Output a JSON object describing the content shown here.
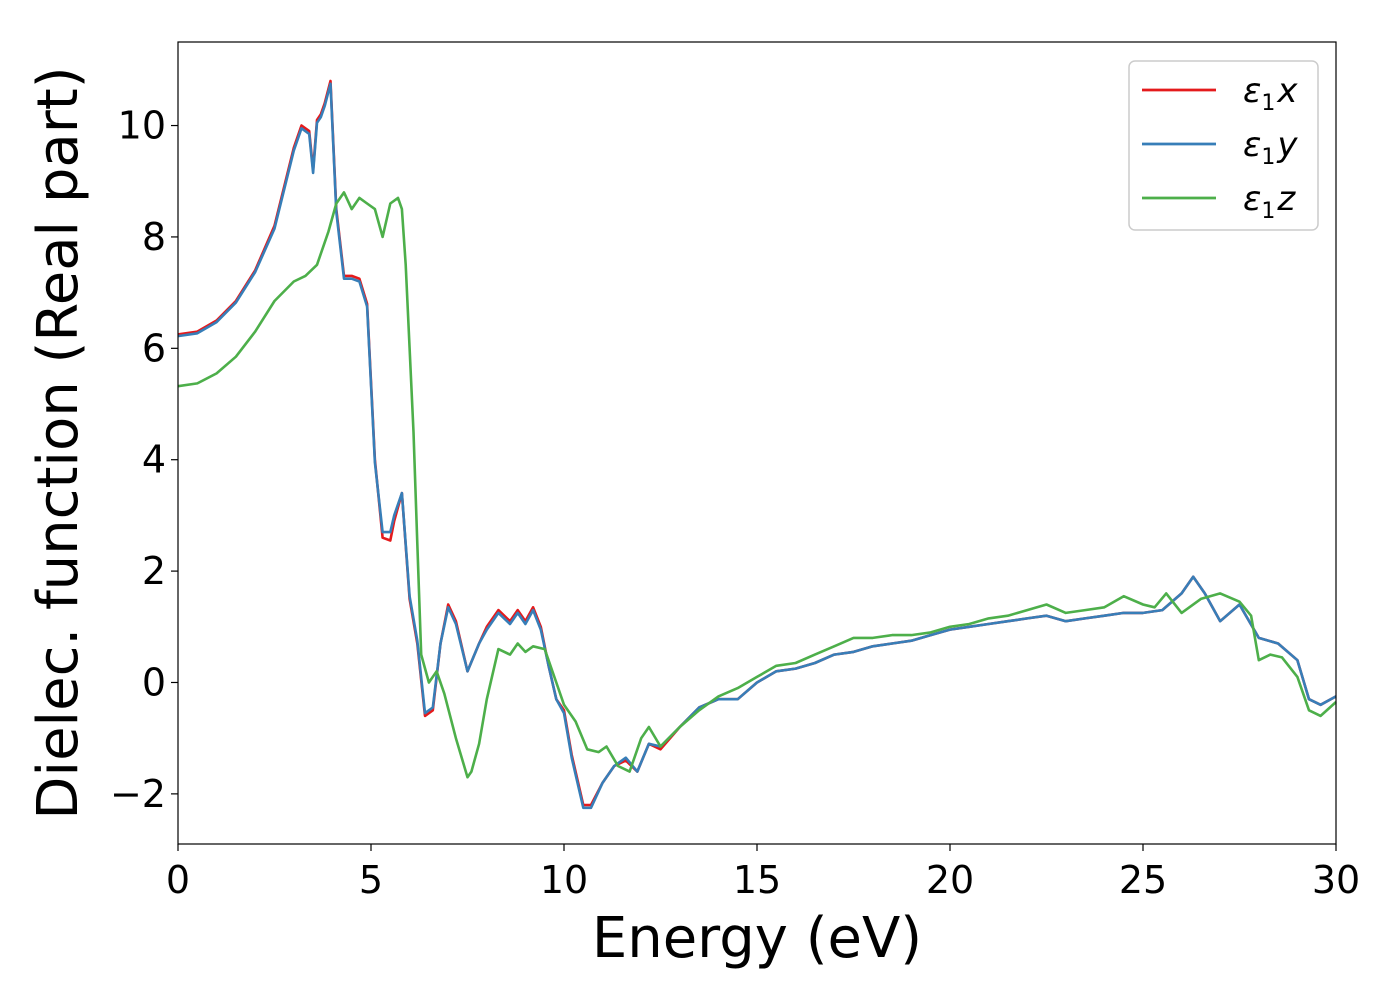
{
  "chart_data": {
    "type": "line",
    "xlabel": "Energy (eV)",
    "ylabel": "Dielec. function (Real part)",
    "xlim": [
      0,
      30
    ],
    "ylim": [
      -2.9,
      11.5
    ],
    "xticks": [
      0,
      5,
      10,
      15,
      20,
      25,
      30
    ],
    "yticks": [
      -2,
      0,
      2,
      4,
      6,
      8,
      10
    ],
    "xtick_labels": [
      "0",
      "5",
      "10",
      "15",
      "20",
      "25",
      "30"
    ],
    "ytick_labels": [
      "−2",
      "0",
      "2",
      "4",
      "6",
      "8",
      "10"
    ],
    "grid": false,
    "legend_position": "top-right",
    "series": [
      {
        "name": "ε1x",
        "symbol": "ε",
        "sub": "1",
        "var": "x",
        "color": "#e41a1c",
        "x": [
          0,
          0.5,
          1.0,
          1.5,
          2.0,
          2.5,
          3.0,
          3.2,
          3.4,
          3.5,
          3.6,
          3.7,
          3.8,
          3.95,
          4.1,
          4.3,
          4.5,
          4.7,
          4.9,
          5.1,
          5.3,
          5.5,
          5.6,
          5.8,
          6.0,
          6.2,
          6.4,
          6.6,
          6.8,
          7.0,
          7.2,
          7.5,
          7.8,
          8.0,
          8.3,
          8.6,
          8.8,
          9.0,
          9.2,
          9.4,
          9.6,
          9.8,
          10.0,
          10.2,
          10.5,
          10.7,
          11.0,
          11.3,
          11.6,
          11.9,
          12.2,
          12.5,
          13.0,
          13.5,
          14.0,
          14.5,
          15.0,
          15.5,
          16.0,
          16.5,
          17.0,
          17.5,
          18.0,
          18.5,
          19.0,
          19.5,
          20.0,
          20.5,
          21.0,
          21.5,
          22.0,
          22.5,
          23.0,
          23.5,
          24.0,
          24.5,
          25.0,
          25.5,
          26.0,
          26.3,
          26.6,
          27.0,
          27.5,
          28.0,
          28.5,
          29.0,
          29.3,
          29.6,
          30.0
        ],
        "y": [
          6.25,
          6.3,
          6.5,
          6.85,
          7.4,
          8.2,
          9.6,
          10.0,
          9.9,
          9.2,
          10.1,
          10.2,
          10.4,
          10.8,
          8.5,
          7.3,
          7.3,
          7.25,
          6.8,
          4.0,
          2.6,
          2.55,
          2.9,
          3.4,
          1.5,
          0.7,
          -0.6,
          -0.5,
          0.7,
          1.4,
          1.1,
          0.2,
          0.7,
          1.0,
          1.3,
          1.1,
          1.3,
          1.1,
          1.35,
          1.0,
          0.3,
          -0.3,
          -0.5,
          -1.3,
          -2.2,
          -2.2,
          -1.8,
          -1.5,
          -1.4,
          -1.6,
          -1.1,
          -1.2,
          -0.8,
          -0.45,
          -0.3,
          -0.3,
          0.0,
          0.2,
          0.25,
          0.35,
          0.5,
          0.55,
          0.65,
          0.7,
          0.75,
          0.85,
          0.95,
          1.0,
          1.05,
          1.1,
          1.15,
          1.2,
          1.1,
          1.15,
          1.2,
          1.25,
          1.25,
          1.3,
          1.6,
          1.9,
          1.6,
          1.1,
          1.4,
          0.8,
          0.7,
          0.4,
          -0.3,
          -0.4,
          -0.25
        ]
      },
      {
        "name": "ε1y",
        "symbol": "ε",
        "sub": "1",
        "var": "y",
        "color": "#377eb8",
        "x": [
          0,
          0.5,
          1.0,
          1.5,
          2.0,
          2.5,
          3.0,
          3.2,
          3.4,
          3.5,
          3.6,
          3.7,
          3.8,
          3.95,
          4.1,
          4.3,
          4.5,
          4.7,
          4.9,
          5.1,
          5.3,
          5.5,
          5.6,
          5.8,
          6.0,
          6.2,
          6.4,
          6.6,
          6.8,
          7.0,
          7.2,
          7.5,
          7.8,
          8.0,
          8.3,
          8.6,
          8.8,
          9.0,
          9.2,
          9.4,
          9.6,
          9.8,
          10.0,
          10.2,
          10.5,
          10.7,
          11.0,
          11.3,
          11.6,
          11.9,
          12.2,
          12.5,
          13.0,
          13.5,
          14.0,
          14.5,
          15.0,
          15.5,
          16.0,
          16.5,
          17.0,
          17.5,
          18.0,
          18.5,
          19.0,
          19.5,
          20.0,
          20.5,
          21.0,
          21.5,
          22.0,
          22.5,
          23.0,
          23.5,
          24.0,
          24.5,
          25.0,
          25.5,
          26.0,
          26.3,
          26.6,
          27.0,
          27.5,
          28.0,
          28.5,
          29.0,
          29.3,
          29.6,
          30.0
        ],
        "y": [
          6.22,
          6.27,
          6.47,
          6.82,
          7.37,
          8.15,
          9.55,
          9.95,
          9.85,
          9.15,
          10.05,
          10.15,
          10.35,
          10.75,
          8.45,
          7.25,
          7.25,
          7.2,
          6.75,
          3.95,
          2.7,
          2.7,
          3.0,
          3.4,
          1.55,
          0.75,
          -0.55,
          -0.45,
          0.7,
          1.35,
          1.05,
          0.2,
          0.7,
          0.95,
          1.25,
          1.05,
          1.25,
          1.05,
          1.3,
          0.95,
          0.3,
          -0.3,
          -0.55,
          -1.35,
          -2.25,
          -2.25,
          -1.8,
          -1.5,
          -1.35,
          -1.6,
          -1.1,
          -1.15,
          -0.8,
          -0.45,
          -0.3,
          -0.3,
          0.0,
          0.2,
          0.25,
          0.35,
          0.5,
          0.55,
          0.65,
          0.7,
          0.75,
          0.85,
          0.95,
          1.0,
          1.05,
          1.1,
          1.15,
          1.2,
          1.1,
          1.15,
          1.2,
          1.25,
          1.25,
          1.3,
          1.6,
          1.9,
          1.6,
          1.1,
          1.4,
          0.8,
          0.7,
          0.4,
          -0.3,
          -0.4,
          -0.25
        ]
      },
      {
        "name": "ε1z",
        "symbol": "ε",
        "sub": "1",
        "var": "z",
        "color": "#4daf4a",
        "x": [
          0,
          0.5,
          1.0,
          1.5,
          2.0,
          2.5,
          3.0,
          3.3,
          3.6,
          3.9,
          4.1,
          4.3,
          4.5,
          4.7,
          4.9,
          5.1,
          5.3,
          5.5,
          5.7,
          5.8,
          5.9,
          6.0,
          6.1,
          6.2,
          6.3,
          6.5,
          6.7,
          6.9,
          7.2,
          7.5,
          7.6,
          7.8,
          8.0,
          8.3,
          8.6,
          8.8,
          9.0,
          9.2,
          9.5,
          9.8,
          10.0,
          10.3,
          10.6,
          10.9,
          11.1,
          11.4,
          11.7,
          12.0,
          12.2,
          12.5,
          13.0,
          13.5,
          14.0,
          14.5,
          15.0,
          15.5,
          16.0,
          16.5,
          17.0,
          17.5,
          18.0,
          18.5,
          19.0,
          19.5,
          20.0,
          20.5,
          21.0,
          21.5,
          22.0,
          22.5,
          23.0,
          23.5,
          24.0,
          24.5,
          25.0,
          25.3,
          25.6,
          26.0,
          26.5,
          27.0,
          27.5,
          27.8,
          28.0,
          28.3,
          28.6,
          29.0,
          29.3,
          29.6,
          30.0
        ],
        "y": [
          5.32,
          5.37,
          5.55,
          5.85,
          6.3,
          6.85,
          7.2,
          7.3,
          7.5,
          8.1,
          8.6,
          8.8,
          8.5,
          8.7,
          8.6,
          8.5,
          8.0,
          8.6,
          8.7,
          8.5,
          7.5,
          6.0,
          4.5,
          2.5,
          0.5,
          0.0,
          0.2,
          -0.2,
          -1.0,
          -1.7,
          -1.6,
          -1.1,
          -0.3,
          0.6,
          0.5,
          0.7,
          0.55,
          0.65,
          0.6,
          0.0,
          -0.4,
          -0.7,
          -1.2,
          -1.25,
          -1.15,
          -1.5,
          -1.6,
          -1.0,
          -0.8,
          -1.15,
          -0.8,
          -0.5,
          -0.25,
          -0.1,
          0.1,
          0.3,
          0.35,
          0.5,
          0.65,
          0.8,
          0.8,
          0.85,
          0.85,
          0.9,
          1.0,
          1.05,
          1.15,
          1.2,
          1.3,
          1.4,
          1.25,
          1.3,
          1.35,
          1.55,
          1.4,
          1.35,
          1.6,
          1.25,
          1.5,
          1.6,
          1.45,
          1.2,
          0.4,
          0.5,
          0.45,
          0.1,
          -0.5,
          -0.6,
          -0.35
        ]
      }
    ]
  }
}
